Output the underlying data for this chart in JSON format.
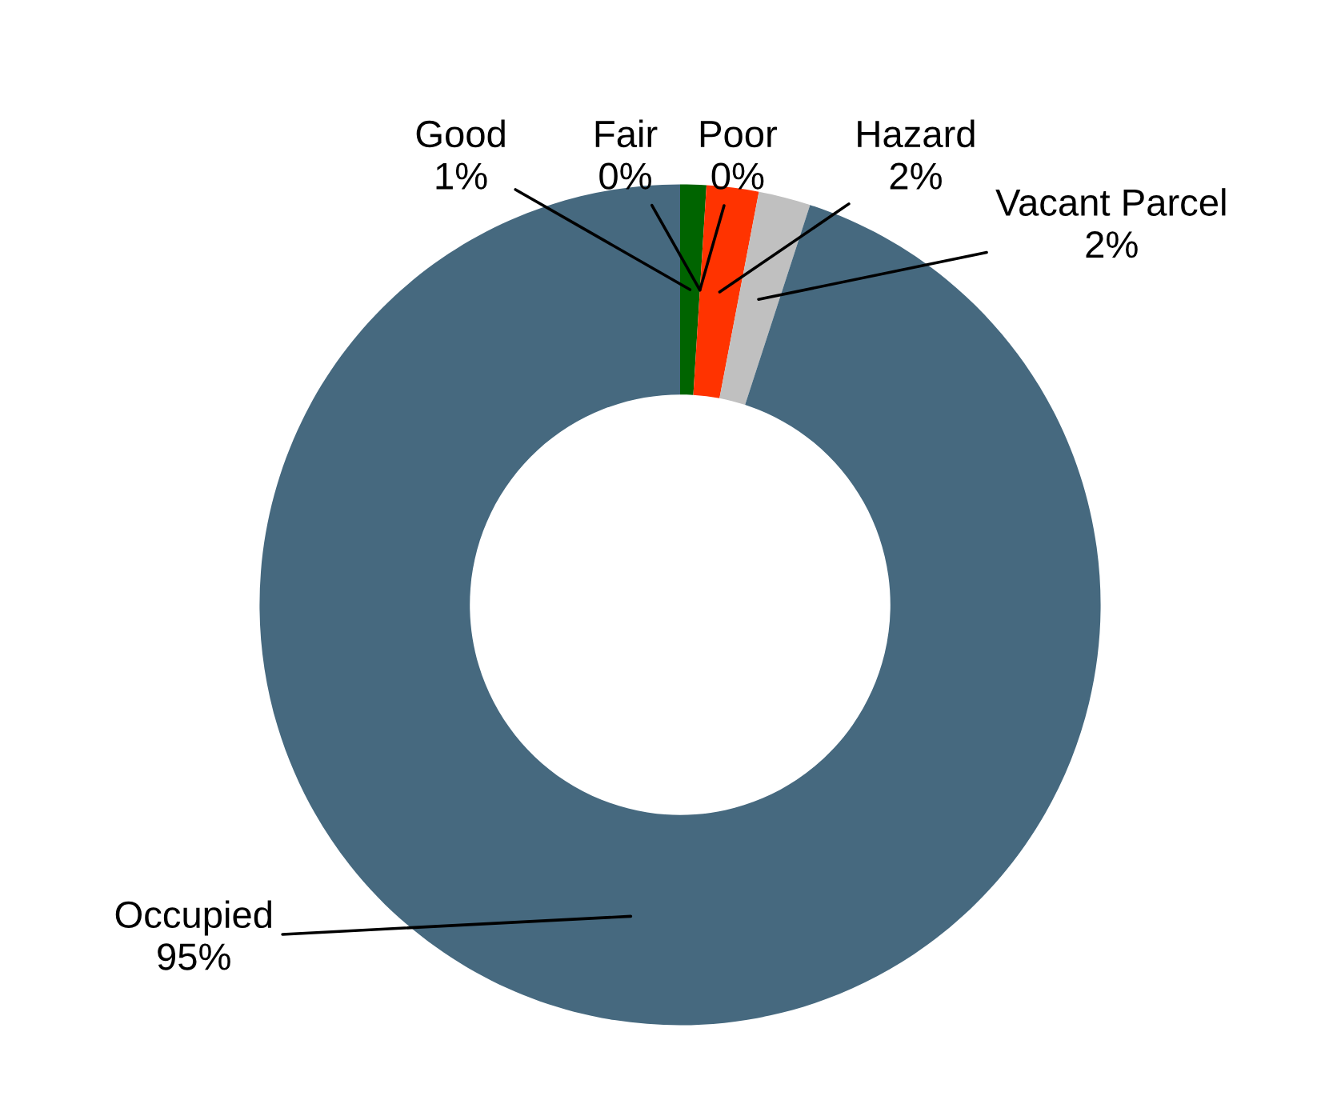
{
  "chart_data": {
    "type": "donut",
    "categories": [
      "Good",
      "Fair",
      "Poor",
      "Hazard",
      "Vacant Parcel",
      "Occupied"
    ],
    "values": [
      1,
      0,
      0,
      2,
      2,
      95
    ],
    "colors": [
      "#006400",
      "#4caf50",
      "#ffc000",
      "#ff3300",
      "#c0c0c0",
      "#46697f"
    ],
    "value_labels": [
      "1%",
      "0%",
      "0%",
      "2%",
      "2%",
      "95%"
    ],
    "legend": false
  }
}
